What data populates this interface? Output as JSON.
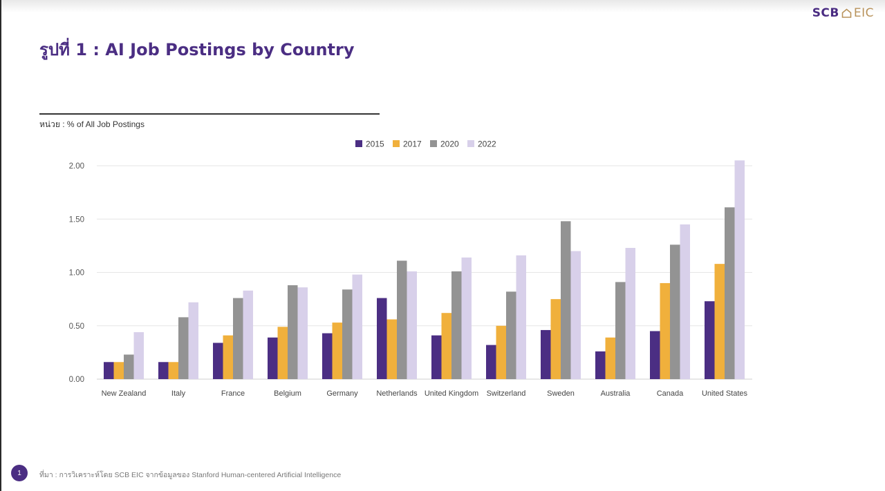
{
  "logo": {
    "scb": "SCB",
    "eic": "EIC"
  },
  "title": "รูปที่ 1 : AI Job Postings by Country",
  "unit_label": "หน่วย : % of All Job Postings",
  "footer": {
    "page_number": "1",
    "source": "ที่มา : การวิเคราะห์โดย SCB EIC จากข้อมูลของ Stanford Human-centered Artificial Intelligence"
  },
  "colors": {
    "brand": "#4b2e83",
    "gold": "#b8925a"
  },
  "chart_data": {
    "type": "bar",
    "categories": [
      "New Zealand",
      "Italy",
      "France",
      "Belgium",
      "Germany",
      "Netherlands",
      "United Kingdom",
      "Switzerland",
      "Sweden",
      "Australia",
      "Canada",
      "United States"
    ],
    "series": [
      {
        "name": "2015",
        "color": "#4b2e83",
        "values": [
          0.16,
          0.16,
          0.34,
          0.39,
          0.43,
          0.76,
          0.41,
          0.32,
          0.46,
          0.26,
          0.45,
          0.73
        ]
      },
      {
        "name": "2017",
        "color": "#f0b03c",
        "values": [
          0.16,
          0.16,
          0.41,
          0.49,
          0.53,
          0.56,
          0.62,
          0.5,
          0.75,
          0.39,
          0.9,
          1.08
        ]
      },
      {
        "name": "2020",
        "color": "#939393",
        "values": [
          0.23,
          0.58,
          0.76,
          0.88,
          0.84,
          1.11,
          1.01,
          0.82,
          1.48,
          0.91,
          1.26,
          1.61
        ]
      },
      {
        "name": "2022",
        "color": "#d8d0ea",
        "values": [
          0.44,
          0.72,
          0.83,
          0.86,
          0.98,
          1.01,
          1.14,
          1.16,
          1.2,
          1.23,
          1.45,
          2.05
        ]
      }
    ],
    "yticks": [
      "0.00",
      "0.50",
      "1.00",
      "1.50",
      "2.00"
    ],
    "ylim": [
      0,
      2.0
    ],
    "grid": true,
    "legend_position": "top-center"
  }
}
